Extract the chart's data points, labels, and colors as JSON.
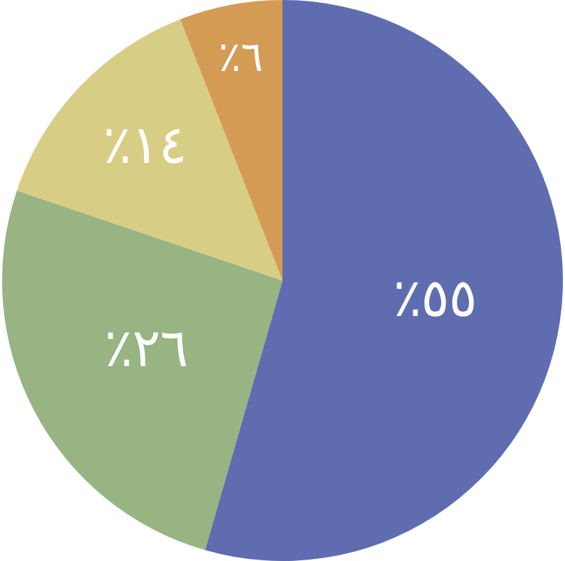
{
  "chart_data": {
    "type": "pie",
    "categories": [
      null,
      null,
      null,
      null
    ],
    "values": [
      55,
      26,
      14,
      6
    ],
    "colors": [
      "#5f6db0",
      "#97b482",
      "#d8cd84",
      "#d39b54"
    ],
    "value_labels": [
      "٥٥٪",
      "٢٦٪",
      "١٤٪",
      "٦٪"
    ],
    "legend": false
  }
}
